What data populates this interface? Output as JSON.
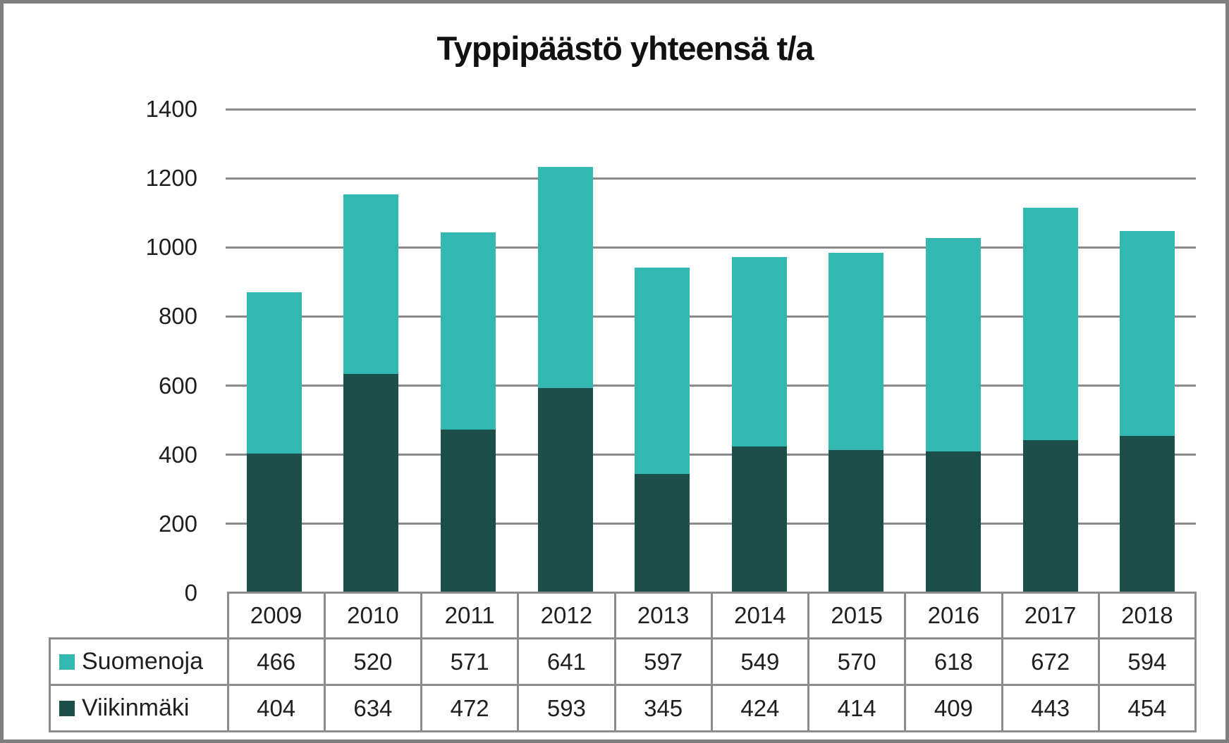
{
  "title": "Typpipäästö yhteensä t/a",
  "chart_data": {
    "type": "bar",
    "stacked": true,
    "title": "Typpipäästö yhteensä t/a",
    "categories": [
      "2009",
      "2010",
      "2011",
      "2012",
      "2013",
      "2014",
      "2015",
      "2016",
      "2017",
      "2018"
    ],
    "series": [
      {
        "name": "Suomenoja",
        "color": "#33b8b1",
        "values": [
          466,
          520,
          571,
          641,
          597,
          549,
          570,
          618,
          672,
          594
        ]
      },
      {
        "name": "Viikinmäki",
        "color": "#1c4f4a",
        "values": [
          404,
          634,
          472,
          593,
          345,
          424,
          414,
          409,
          443,
          454
        ]
      }
    ],
    "stack_order_bottom_to_top": [
      "Viikinmäki",
      "Suomenoja"
    ],
    "ylim": [
      0,
      1400
    ],
    "yticks": [
      "0",
      "200",
      "400",
      "600",
      "800",
      "1000",
      "1200",
      "1400"
    ],
    "grid": true,
    "legend_position": "table-left",
    "colors": {
      "gridline": "#8a8a8a",
      "table_border": "#8c8c8c",
      "frame_border": "#7f7f7f",
      "text": "#1f1f1f",
      "background": "#ffffff"
    }
  }
}
